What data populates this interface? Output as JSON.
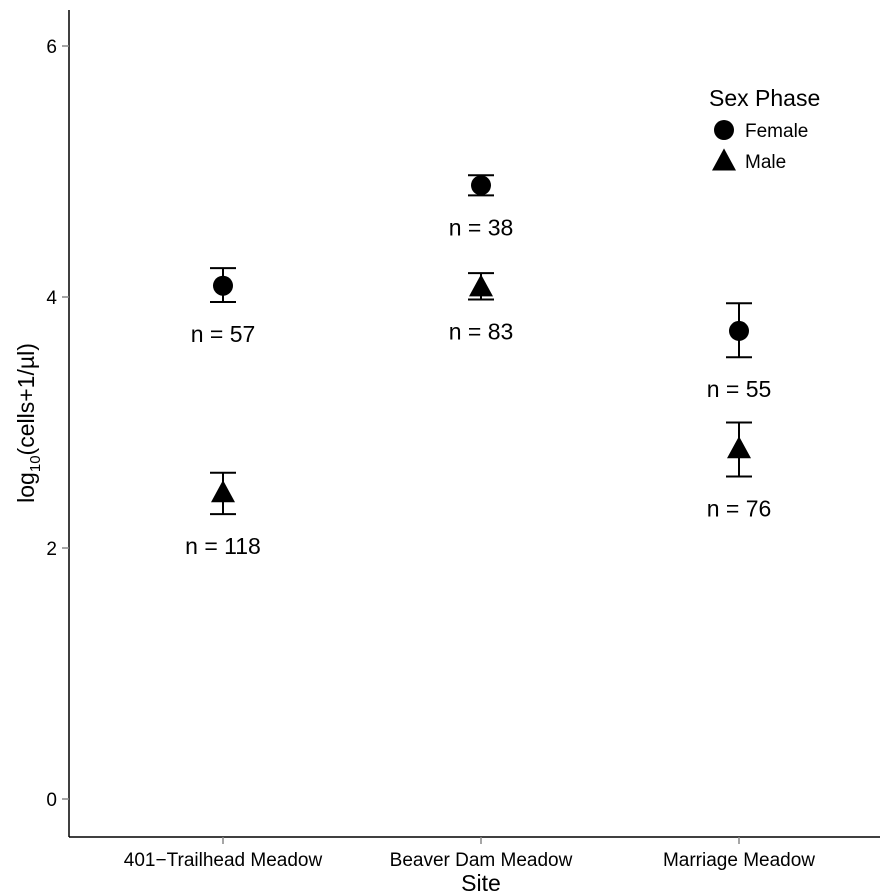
{
  "chart_data": {
    "type": "scatter",
    "xlabel": "Site",
    "ylabel_base": "log",
    "ylabel_sub": "10",
    "ylabel_rest": "(cells+1/µl)",
    "ylim": [
      -0.3,
      6.3
    ],
    "yticks": [
      0,
      2,
      4,
      6
    ],
    "categories": [
      "401−Trailhead Meadow",
      "Beaver Dam Meadow",
      "Marriage Meadow"
    ],
    "legend": {
      "title": "Sex Phase",
      "position": "top-right",
      "entries": [
        {
          "label": "Female",
          "shape": "circle"
        },
        {
          "label": "Male",
          "shape": "triangle"
        }
      ]
    },
    "series": [
      {
        "name": "Female",
        "shape": "circle",
        "points": [
          {
            "y": 4.09,
            "lower": 3.96,
            "upper": 4.23,
            "n_label": "n = 57"
          },
          {
            "y": 4.89,
            "lower": 4.81,
            "upper": 4.97,
            "n_label": "n = 38"
          },
          {
            "y": 3.73,
            "lower": 3.52,
            "upper": 3.95,
            "n_label": "n = 55"
          }
        ]
      },
      {
        "name": "Male",
        "shape": "triangle",
        "points": [
          {
            "y": 2.44,
            "lower": 2.27,
            "upper": 2.6,
            "n_label": "n = 118"
          },
          {
            "y": 4.08,
            "lower": 3.98,
            "upper": 4.19,
            "n_label": "n = 83"
          },
          {
            "y": 2.79,
            "lower": 2.57,
            "upper": 3.0,
            "n_label": "n = 76"
          }
        ]
      }
    ],
    "grid": false,
    "color": "#000000"
  }
}
